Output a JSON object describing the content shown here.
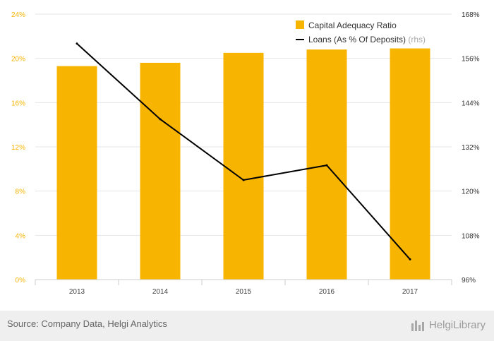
{
  "chart_data": {
    "type": "bar",
    "categories": [
      "2013",
      "2014",
      "2015",
      "2016",
      "2017"
    ],
    "series": [
      {
        "name": "Capital Adequacy Ratio",
        "type": "bar",
        "axis": "left",
        "values": [
          19.3,
          19.6,
          20.5,
          20.8,
          20.9
        ],
        "color": "#f7b400"
      },
      {
        "name": "Loans (As % Of Deposits)",
        "axis_note": "(rhs)",
        "type": "line",
        "axis": "right",
        "values": [
          160.0,
          139.5,
          123.0,
          127.0,
          101.5
        ],
        "color": "#000000"
      }
    ],
    "left_axis": {
      "ylim": [
        0,
        24
      ],
      "ticks": [
        0,
        4,
        8,
        12,
        16,
        20,
        24
      ],
      "tick_labels": [
        "0%",
        "4%",
        "8%",
        "12%",
        "16%",
        "20%",
        "24%"
      ]
    },
    "right_axis": {
      "ylim": [
        96,
        168
      ],
      "ticks": [
        96,
        108,
        120,
        132,
        144,
        156,
        168
      ],
      "tick_labels": [
        "96%",
        "108%",
        "120%",
        "132%",
        "144%",
        "156%",
        "168%"
      ]
    },
    "grid": true,
    "legend_position": "top-right"
  },
  "colors": {
    "bar": "#f7b400",
    "line": "#000000",
    "axis_label": "#f7b400",
    "grid": "#e6e6e6"
  },
  "footer": {
    "source": "Source: Company Data, Helgi Analytics",
    "brand": "HelgiLibrary",
    "brand_icon": "bar-chart-logo-icon"
  }
}
